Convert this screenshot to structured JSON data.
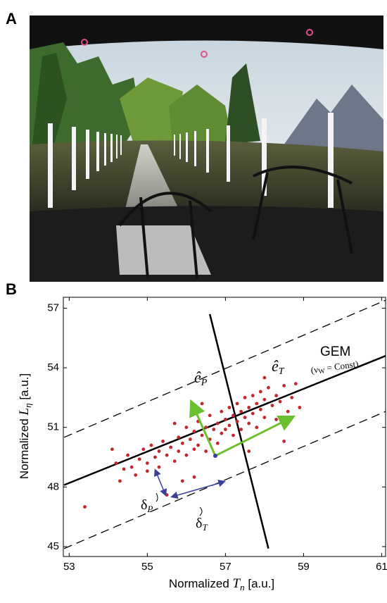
{
  "panel_a": {
    "label": "A"
  },
  "chart_data": {
    "type": "scatter",
    "panel_label": "B",
    "xlabel": {
      "prefix": "Normalized ",
      "var": "T",
      "sub": "n",
      "unit": " [a.u.]"
    },
    "ylabel": {
      "prefix": "Normalized ",
      "var": "L",
      "sub": "η",
      "unit": " [a.u.]"
    },
    "xlim": [
      52.85,
      61.1
    ],
    "xticks": [
      53,
      55,
      57,
      59,
      61
    ],
    "ylim": [
      44.5,
      57.55
    ],
    "yticks": [
      45,
      48,
      51,
      54,
      57
    ],
    "color": "#c1272d",
    "x": [
      53.4,
      54.2,
      54.4,
      54.5,
      54.6,
      54.7,
      54.8,
      54.9,
      55.0,
      55.0,
      55.1,
      55.2,
      55.3,
      55.3,
      55.4,
      55.5,
      55.5,
      55.6,
      55.7,
      55.8,
      55.8,
      55.9,
      56.0,
      56.0,
      56.1,
      56.2,
      56.2,
      56.3,
      56.3,
      56.4,
      56.5,
      56.5,
      56.6,
      56.6,
      56.7,
      56.8,
      56.8,
      56.9,
      56.9,
      57.0,
      57.0,
      57.1,
      57.1,
      57.2,
      57.2,
      57.3,
      57.3,
      57.4,
      57.4,
      57.5,
      57.5,
      57.6,
      57.6,
      57.7,
      57.7,
      57.8,
      57.8,
      57.9,
      57.9,
      58.0,
      58.0,
      58.1,
      58.2,
      58.3,
      58.3,
      58.4,
      58.5,
      58.6,
      58.7,
      58.8,
      58.9,
      58.5,
      56.2,
      55.9,
      54.3,
      57.6,
      56.4,
      55.7,
      54.1,
      58.0
    ],
    "y": [
      47.0,
      49.2,
      48.9,
      49.6,
      49.0,
      48.6,
      49.4,
      49.9,
      49.2,
      48.8,
      50.1,
      49.5,
      49.0,
      49.8,
      50.3,
      49.6,
      47.6,
      50.0,
      49.3,
      50.5,
      49.8,
      50.2,
      51.0,
      49.6,
      50.4,
      50.8,
      49.9,
      51.3,
      50.1,
      50.6,
      51.0,
      49.8,
      50.4,
      51.6,
      50.9,
      51.2,
      50.2,
      51.8,
      50.7,
      51.4,
      50.9,
      52.0,
      51.1,
      51.6,
      50.6,
      52.2,
      51.3,
      51.8,
      50.9,
      52.5,
      51.5,
      52.0,
      51.2,
      52.6,
      51.7,
      52.2,
      51.0,
      52.8,
      51.9,
      52.4,
      51.5,
      53.0,
      52.1,
      52.6,
      51.4,
      52.3,
      53.1,
      51.8,
      52.5,
      53.2,
      52.0,
      50.3,
      48.5,
      48.3,
      48.3,
      49.8,
      52.2,
      51.2,
      49.9,
      53.5
    ],
    "lines": [
      {
        "style": "solid",
        "x": [
          52.87,
          61.1
        ],
        "y": [
          48.1,
          54.6
        ]
      },
      {
        "style": "dashed",
        "x": [
          52.87,
          61.1
        ],
        "y": [
          50.5,
          57.4
        ]
      },
      {
        "style": "dashed",
        "x": [
          52.87,
          61.1
        ],
        "y": [
          44.9,
          51.8
        ]
      },
      {
        "style": "solid",
        "x": [
          56.6,
          58.1
        ],
        "y": [
          56.7,
          44.9
        ]
      }
    ],
    "annotations": {
      "gem": "GEM",
      "gem_note": {
        "open": "(ν",
        "sub": "W",
        "rest": " = Const)"
      },
      "e_p": {
        "base": "ê",
        "sub": "P"
      },
      "e_t": {
        "base": "ê",
        "sub": "T"
      },
      "delta_p": {
        "base": "δ",
        "sub": "P"
      },
      "delta_t": {
        "base": "δ",
        "sub": "T"
      }
    }
  }
}
